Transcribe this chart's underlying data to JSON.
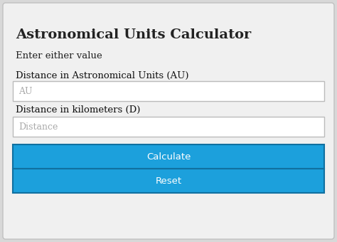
{
  "bg_color": "#d8d8d8",
  "card_color": "#f0f0f0",
  "title": "Astronomical Units Calculator",
  "title_fontsize": 14,
  "subtitle": "Enter either value",
  "subtitle_fontsize": 9.5,
  "label1": "Distance in Astronomical Units (AU)",
  "label2": "Distance in kilometers (D)",
  "placeholder1": "AU",
  "placeholder2": "Distance",
  "input_bg": "#ffffff",
  "input_border": "#bbbbbb",
  "placeholder_color": "#aaaaaa",
  "btn1_text": "Calculate",
  "btn2_text": "Reset",
  "btn_color": "#1ca0dc",
  "btn_border_color": "#1070a0",
  "btn_text_color": "#ffffff",
  "btn_fontsize": 9.5,
  "label_fontsize": 9.5,
  "input_fontsize": 9,
  "label_color": "#111111",
  "text_color": "#222222"
}
